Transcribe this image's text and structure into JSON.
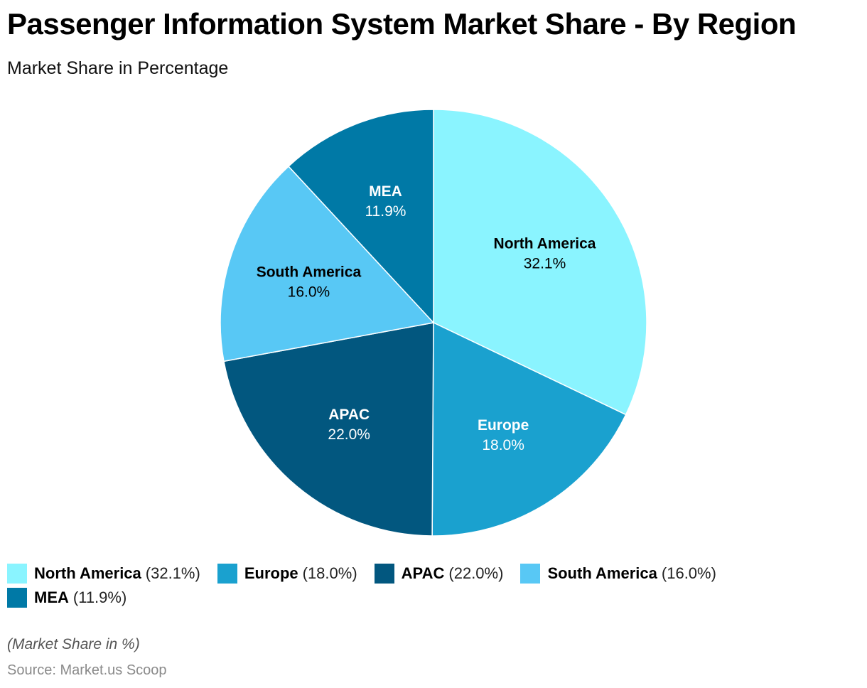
{
  "header": {
    "title": "Passenger Information System Market Share - By Region",
    "subtitle": "Market Share in Percentage"
  },
  "footer": {
    "note": "(Market Share in %)",
    "source": "Source: Market.us Scoop"
  },
  "chart_data": {
    "type": "pie",
    "title": "Passenger Information System Market Share - By Region",
    "subtitle": "Market Share in Percentage",
    "unit": "%",
    "legend_position": "bottom-left",
    "start_angle": "12 o'clock, clockwise",
    "slices": [
      {
        "name": "North America",
        "value": 32.1,
        "label": "32.1%",
        "legend_value": "(32.1%)",
        "color": "#8af4ff",
        "text_color": "#000000"
      },
      {
        "name": "Europe",
        "value": 18.0,
        "label": "18.0%",
        "legend_value": "(18.0%)",
        "color": "#1aa1cf",
        "text_color": "#ffffff"
      },
      {
        "name": "APAC",
        "value": 22.0,
        "label": "22.0%",
        "legend_value": "(22.0%)",
        "color": "#02577f",
        "text_color": "#ffffff"
      },
      {
        "name": "South America",
        "value": 16.0,
        "label": "16.0%",
        "legend_value": "(16.0%)",
        "color": "#58c8f5",
        "text_color": "#000000"
      },
      {
        "name": "MEA",
        "value": 11.9,
        "label": "11.9%",
        "legend_value": "(11.9%)",
        "color": "#0079a6",
        "text_color": "#ffffff"
      }
    ]
  }
}
